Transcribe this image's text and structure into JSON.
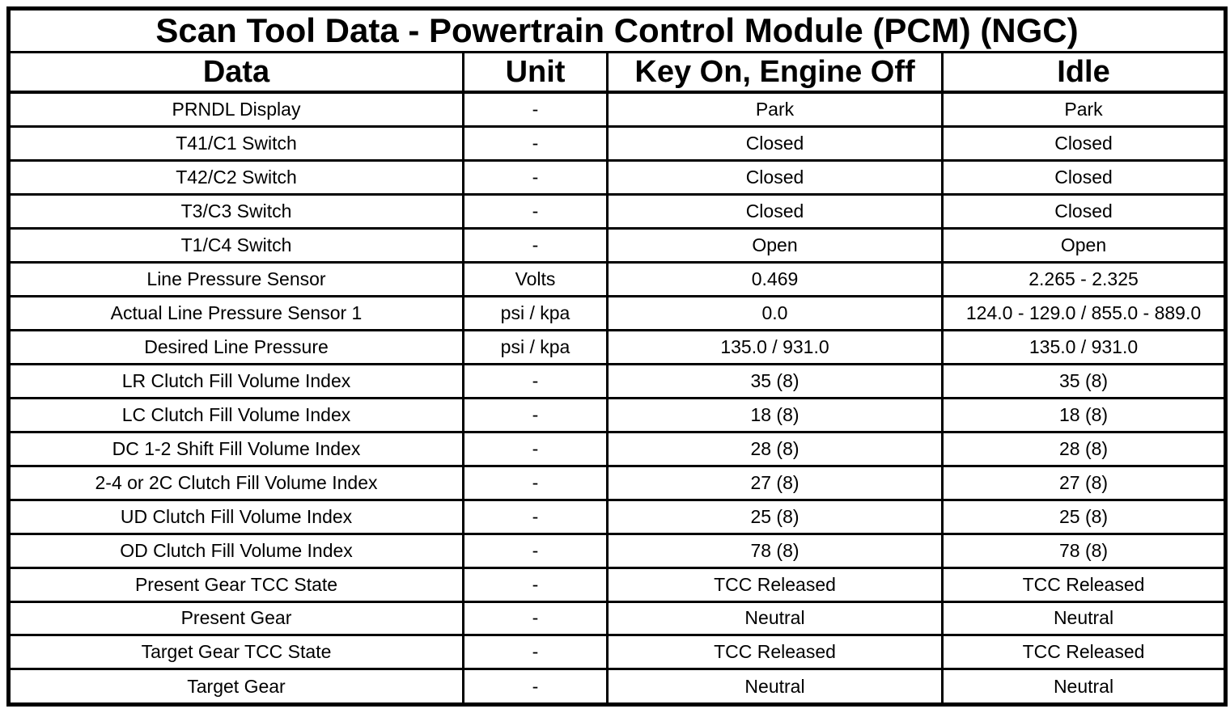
{
  "table": {
    "title": "Scan Tool Data - Powertrain Control Module (PCM) (NGC)",
    "columns": [
      "Data",
      "Unit",
      "Key On, Engine Off",
      "Idle"
    ],
    "rows": [
      [
        "PRNDL Display",
        "-",
        "Park",
        "Park"
      ],
      [
        "T41/C1 Switch",
        "-",
        "Closed",
        "Closed"
      ],
      [
        "T42/C2 Switch",
        "-",
        "Closed",
        "Closed"
      ],
      [
        "T3/C3 Switch",
        "-",
        "Closed",
        "Closed"
      ],
      [
        "T1/C4 Switch",
        "-",
        "Open",
        "Open"
      ],
      [
        "Line Pressure Sensor",
        "Volts",
        "0.469",
        "2.265 - 2.325"
      ],
      [
        "Actual Line Pressure Sensor 1",
        "psi / kpa",
        "0.0",
        "124.0 - 129.0 / 855.0 - 889.0"
      ],
      [
        "Desired Line Pressure",
        "psi / kpa",
        "135.0 / 931.0",
        "135.0 / 931.0"
      ],
      [
        "LR Clutch Fill Volume Index",
        "-",
        "35 (8)",
        "35 (8)"
      ],
      [
        "LC Clutch Fill Volume Index",
        "-",
        "18 (8)",
        "18 (8)"
      ],
      [
        "DC 1-2 Shift Fill Volume Index",
        "-",
        "28 (8)",
        "28 (8)"
      ],
      [
        "2-4 or 2C Clutch Fill Volume Index",
        "-",
        "27 (8)",
        "27 (8)"
      ],
      [
        "UD Clutch Fill Volume Index",
        "-",
        "25 (8)",
        "25 (8)"
      ],
      [
        "OD Clutch Fill Volume Index",
        "-",
        "78 (8)",
        "78 (8)"
      ],
      [
        "Present Gear TCC State",
        "-",
        "TCC Released",
        "TCC Released"
      ],
      [
        "Present Gear",
        "-",
        "Neutral",
        "Neutral"
      ],
      [
        "Target Gear TCC State",
        "-",
        "TCC Released",
        "TCC Released"
      ],
      [
        "Target Gear",
        "-",
        "Neutral",
        "Neutral"
      ]
    ],
    "colors": {
      "border": "#000000",
      "background": "#ffffff",
      "text": "#000000"
    }
  }
}
